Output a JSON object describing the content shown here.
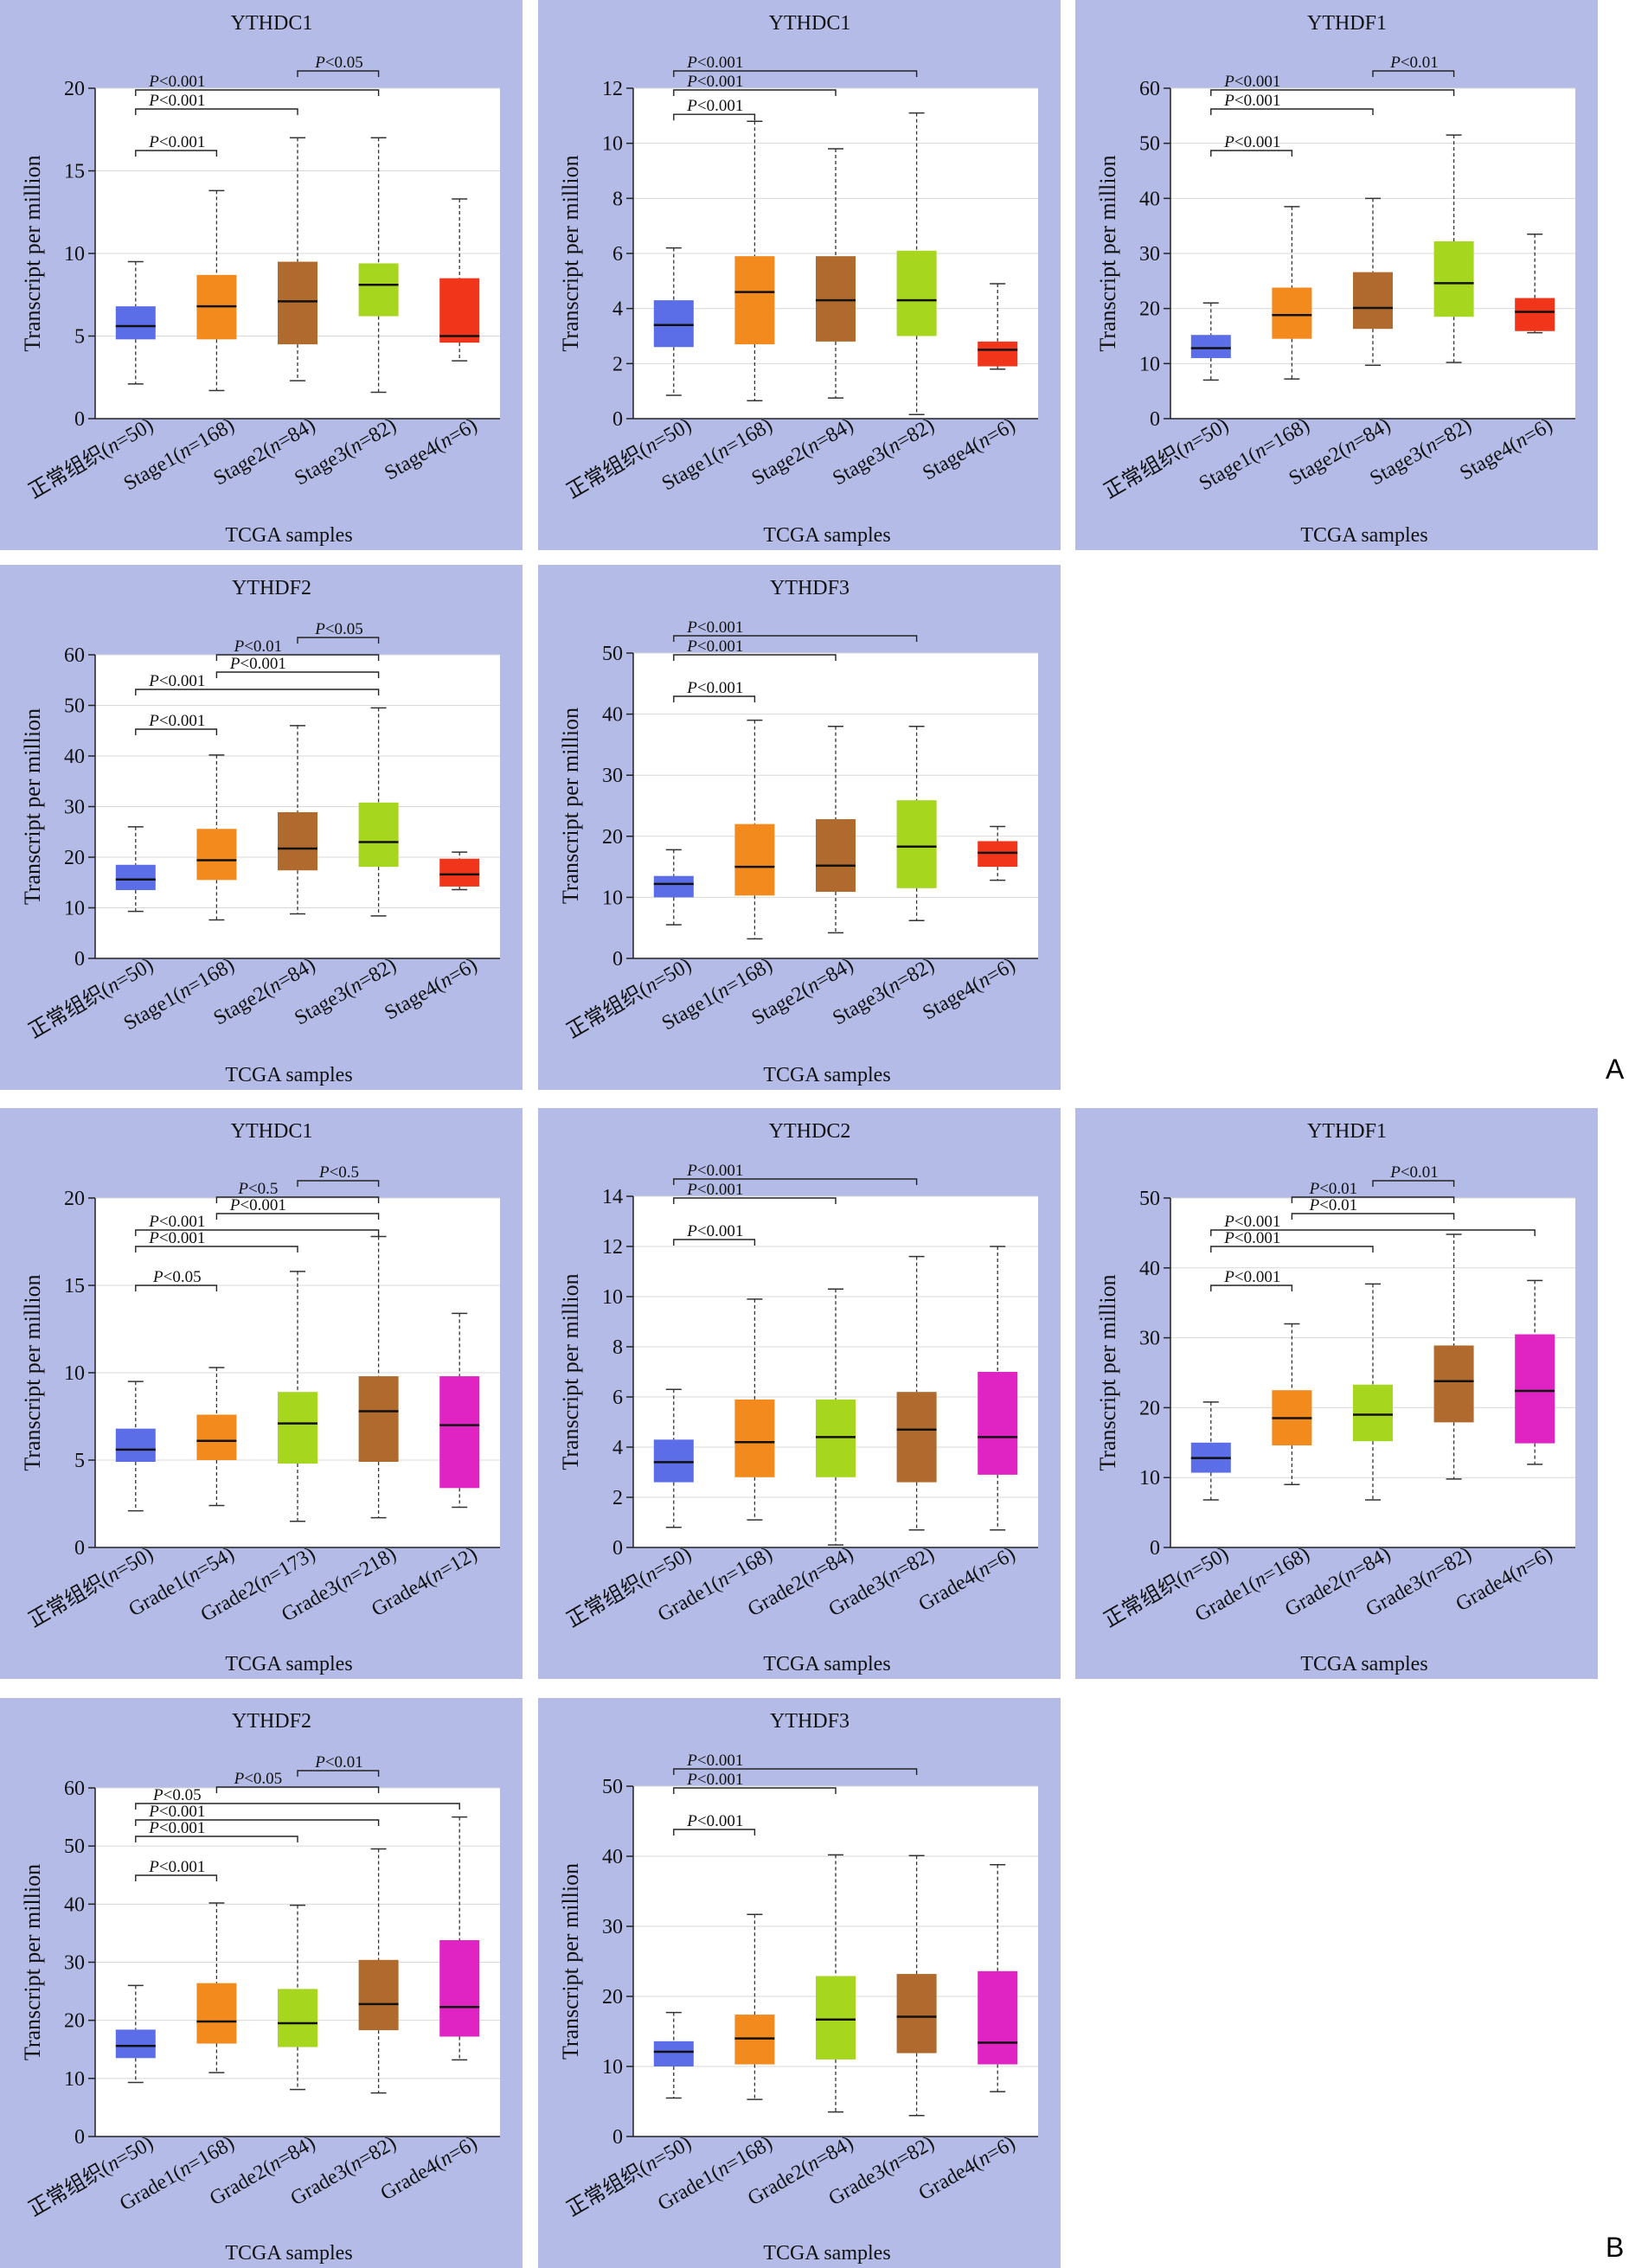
{
  "section_labels": [
    "A",
    "B"
  ],
  "chart_data": [
    {
      "type": "boxplot",
      "title": "YTHDC1",
      "ylabel": "Transcript per million",
      "xlabel": "TCGA samples",
      "ylim": [
        0,
        20
      ],
      "yticks": [
        0,
        5,
        10,
        15,
        20
      ],
      "grid": true,
      "categories": [
        "正常组织(n=50)",
        "Stage1(n=168)",
        "Stage2(n=84)",
        "Stage3(n=82)",
        "Stage4(n=6)"
      ],
      "colors": [
        "#5b6ee8",
        "#f28a1e",
        "#b06a2e",
        "#a6d61e",
        "#f0351a"
      ],
      "boxes": [
        {
          "min": 2.1,
          "q1": 4.8,
          "median": 5.6,
          "q3": 6.8,
          "max": 9.5
        },
        {
          "min": 1.7,
          "q1": 4.8,
          "median": 6.8,
          "q3": 8.7,
          "max": 13.8
        },
        {
          "min": 2.3,
          "q1": 4.5,
          "median": 7.1,
          "q3": 9.5,
          "max": 17.0
        },
        {
          "min": 1.6,
          "q1": 6.2,
          "median": 8.1,
          "q3": 9.4,
          "max": 17.0
        },
        {
          "min": 3.5,
          "q1": 4.6,
          "median": 5.0,
          "q3": 8.5,
          "max": 13.3
        }
      ],
      "comparisons": [
        {
          "from": 2,
          "to": 3,
          "label": "P<0.05"
        },
        {
          "from": 0,
          "to": 3,
          "label": "P<0.001"
        },
        {
          "from": 0,
          "to": 2,
          "label": "P<0.001"
        },
        {
          "from": 0,
          "to": 1,
          "label": "P<0.001"
        }
      ]
    },
    {
      "type": "boxplot",
      "title": "YTHDC1",
      "ylabel": "Transcript per million",
      "xlabel": "TCGA samples",
      "ylim": [
        0,
        12
      ],
      "yticks": [
        0,
        2,
        4,
        6,
        8,
        10,
        12
      ],
      "grid": true,
      "categories": [
        "正常组织(n=50)",
        "Stage1(n=168)",
        "Stage2(n=84)",
        "Stage3(n=82)",
        "Stage4(n=6)"
      ],
      "colors": [
        "#5b6ee8",
        "#f28a1e",
        "#b06a2e",
        "#a6d61e",
        "#f0351a"
      ],
      "boxes": [
        {
          "min": 0.85,
          "q1": 2.6,
          "median": 3.4,
          "q3": 4.3,
          "max": 6.2
        },
        {
          "min": 0.65,
          "q1": 2.7,
          "median": 4.6,
          "q3": 5.9,
          "max": 10.8
        },
        {
          "min": 0.75,
          "q1": 2.8,
          "median": 4.3,
          "q3": 5.9,
          "max": 9.8
        },
        {
          "min": 0.15,
          "q1": 3.0,
          "median": 4.3,
          "q3": 6.1,
          "max": 11.1
        },
        {
          "min": 1.8,
          "q1": 1.9,
          "median": 2.5,
          "q3": 2.8,
          "max": 4.9
        }
      ],
      "comparisons": [
        {
          "from": 0,
          "to": 3,
          "label": "P<0.001"
        },
        {
          "from": 0,
          "to": 2,
          "label": "P<0.001"
        },
        {
          "from": 0,
          "to": 1,
          "label": "P<0.001"
        }
      ]
    },
    {
      "type": "boxplot",
      "title": "YTHDF1",
      "ylabel": "Transcript per million",
      "xlabel": "TCGA samples",
      "ylim": [
        0,
        60
      ],
      "yticks": [
        0,
        10,
        20,
        30,
        40,
        50,
        60
      ],
      "grid": true,
      "categories": [
        "正常组织(n=50)",
        "Stage1(n=168)",
        "Stage2(n=84)",
        "Stage3(n=82)",
        "Stage4(n=6)"
      ],
      "colors": [
        "#5b6ee8",
        "#f28a1e",
        "#b06a2e",
        "#a6d61e",
        "#f0351a"
      ],
      "boxes": [
        {
          "min": 7.0,
          "q1": 11.0,
          "median": 12.8,
          "q3": 15.2,
          "max": 21.0
        },
        {
          "min": 7.2,
          "q1": 14.5,
          "median": 18.8,
          "q3": 23.8,
          "max": 38.5
        },
        {
          "min": 9.7,
          "q1": 16.3,
          "median": 20.1,
          "q3": 26.6,
          "max": 40.0
        },
        {
          "min": 10.2,
          "q1": 18.5,
          "median": 24.6,
          "q3": 32.2,
          "max": 51.5
        },
        {
          "min": 15.6,
          "q1": 15.9,
          "median": 19.4,
          "q3": 21.9,
          "max": 33.5
        }
      ],
      "comparisons": [
        {
          "from": 2,
          "to": 3,
          "label": "P<0.01"
        },
        {
          "from": 0,
          "to": 3,
          "label": "P<0.001"
        },
        {
          "from": 0,
          "to": 2,
          "label": "P<0.001"
        },
        {
          "from": 0,
          "to": 1,
          "label": "P<0.001"
        }
      ]
    },
    {
      "type": "boxplot",
      "title": "YTHDF2",
      "ylabel": "Transcript per million",
      "xlabel": "TCGA samples",
      "ylim": [
        0,
        60
      ],
      "yticks": [
        0,
        10,
        20,
        30,
        40,
        50,
        60
      ],
      "grid": true,
      "categories": [
        "正常组织(n=50)",
        "Stage1(n=168)",
        "Stage2(n=84)",
        "Stage3(n=82)",
        "Stage4(n=6)"
      ],
      "colors": [
        "#5b6ee8",
        "#f28a1e",
        "#b06a2e",
        "#a6d61e",
        "#f0351a"
      ],
      "boxes": [
        {
          "min": 9.3,
          "q1": 13.5,
          "median": 15.6,
          "q3": 18.5,
          "max": 26.0
        },
        {
          "min": 7.6,
          "q1": 15.5,
          "median": 19.4,
          "q3": 25.6,
          "max": 40.2
        },
        {
          "min": 8.8,
          "q1": 17.4,
          "median": 21.7,
          "q3": 28.9,
          "max": 46.0
        },
        {
          "min": 8.4,
          "q1": 18.1,
          "median": 23.0,
          "q3": 30.8,
          "max": 49.5
        },
        {
          "min": 13.6,
          "q1": 14.2,
          "median": 16.6,
          "q3": 19.7,
          "max": 21.0
        }
      ],
      "comparisons": [
        {
          "from": 2,
          "to": 3,
          "label": "P<0.05"
        },
        {
          "from": 1,
          "to": 3,
          "label": "P<0.01"
        },
        {
          "from": 1,
          "to": 3,
          "label": "P<0.001"
        },
        {
          "from": 0,
          "to": 3,
          "label": "P<0.001"
        },
        {
          "from": 0,
          "to": 1,
          "label": "P<0.001"
        }
      ]
    },
    {
      "type": "boxplot",
      "title": "YTHDF3",
      "ylabel": "Transcript per million",
      "xlabel": "TCGA samples",
      "ylim": [
        0,
        50
      ],
      "yticks": [
        0,
        10,
        20,
        30,
        40,
        50
      ],
      "grid": true,
      "categories": [
        "正常组织(n=50)",
        "Stage1(n=168)",
        "Stage2(n=84)",
        "Stage3(n=82)",
        "Stage4(n=6)"
      ],
      "colors": [
        "#5b6ee8",
        "#f28a1e",
        "#b06a2e",
        "#a6d61e",
        "#f0351a"
      ],
      "boxes": [
        {
          "min": 5.5,
          "q1": 10.0,
          "median": 12.2,
          "q3": 13.5,
          "max": 17.8
        },
        {
          "min": 3.2,
          "q1": 10.3,
          "median": 15.0,
          "q3": 22.0,
          "max": 39.0
        },
        {
          "min": 4.2,
          "q1": 10.9,
          "median": 15.2,
          "q3": 22.8,
          "max": 38.0
        },
        {
          "min": 6.2,
          "q1": 11.5,
          "median": 18.3,
          "q3": 25.9,
          "max": 38.0
        },
        {
          "min": 12.8,
          "q1": 15.0,
          "median": 17.3,
          "q3": 19.2,
          "max": 21.6
        }
      ],
      "comparisons": [
        {
          "from": 0,
          "to": 3,
          "label": "P<0.001"
        },
        {
          "from": 0,
          "to": 2,
          "label": "P<0.001"
        },
        {
          "from": 0,
          "to": 1,
          "label": "P<0.001"
        }
      ]
    },
    {
      "type": "boxplot",
      "title": "YTHDC1",
      "ylabel": "Transcript per million",
      "xlabel": "TCGA samples",
      "ylim": [
        0,
        20
      ],
      "yticks": [
        0,
        5,
        10,
        15,
        20
      ],
      "grid": true,
      "categories": [
        "正常组织(n=50)",
        "Grade1(n=54)",
        "Grade2(n=173)",
        "Grade3(n=218)",
        "Grade4(n=12)"
      ],
      "colors": [
        "#5b6ee8",
        "#f28a1e",
        "#a6d61e",
        "#b06a2e",
        "#e024c4"
      ],
      "boxes": [
        {
          "min": 2.1,
          "q1": 4.9,
          "median": 5.6,
          "q3": 6.8,
          "max": 9.5
        },
        {
          "min": 2.4,
          "q1": 5.0,
          "median": 6.1,
          "q3": 7.6,
          "max": 10.3
        },
        {
          "min": 1.5,
          "q1": 4.8,
          "median": 7.1,
          "q3": 8.9,
          "max": 15.8
        },
        {
          "min": 1.7,
          "q1": 4.9,
          "median": 7.8,
          "q3": 9.8,
          "max": 17.8
        },
        {
          "min": 2.3,
          "q1": 3.4,
          "median": 7.0,
          "q3": 9.8,
          "max": 13.4
        }
      ],
      "comparisons": [
        {
          "from": 2,
          "to": 3,
          "label": "P<0.5"
        },
        {
          "from": 1,
          "to": 3,
          "label": "P<0.5"
        },
        {
          "from": 1,
          "to": 3,
          "label": "P<0.001"
        },
        {
          "from": 0,
          "to": 3,
          "label": "P<0.001"
        },
        {
          "from": 0,
          "to": 2,
          "label": "P<0.001"
        },
        {
          "from": 0,
          "to": 1,
          "label": "P<0.05"
        }
      ]
    },
    {
      "type": "boxplot",
      "title": "YTHDC2",
      "ylabel": "Transcript per million",
      "xlabel": "TCGA samples",
      "ylim": [
        0,
        14
      ],
      "yticks": [
        0,
        2,
        4,
        6,
        8,
        10,
        12,
        14
      ],
      "grid": true,
      "categories": [
        "正常组织(n=50)",
        "Grade1(n=168)",
        "Grade2(n=84)",
        "Grade3(n=82)",
        "Grade4(n=6)"
      ],
      "colors": [
        "#5b6ee8",
        "#f28a1e",
        "#a6d61e",
        "#b06a2e",
        "#e024c4"
      ],
      "boxes": [
        {
          "min": 0.8,
          "q1": 2.6,
          "median": 3.4,
          "q3": 4.3,
          "max": 6.3
        },
        {
          "min": 1.1,
          "q1": 2.8,
          "median": 4.2,
          "q3": 5.9,
          "max": 9.9
        },
        {
          "min": 0.1,
          "q1": 2.8,
          "median": 4.4,
          "q3": 5.9,
          "max": 10.3
        },
        {
          "min": 0.7,
          "q1": 2.6,
          "median": 4.7,
          "q3": 6.2,
          "max": 11.6
        },
        {
          "min": 0.7,
          "q1": 2.9,
          "median": 4.4,
          "q3": 7.0,
          "max": 12.0
        }
      ],
      "comparisons": [
        {
          "from": 0,
          "to": 3,
          "label": "P<0.001"
        },
        {
          "from": 0,
          "to": 2,
          "label": "P<0.001"
        },
        {
          "from": 0,
          "to": 1,
          "label": "P<0.001"
        }
      ]
    },
    {
      "type": "boxplot",
      "title": "YTHDF1",
      "ylabel": "Transcript per million",
      "xlabel": "TCGA samples",
      "ylim": [
        0,
        50
      ],
      "yticks": [
        0,
        10,
        20,
        30,
        40,
        50
      ],
      "grid": true,
      "categories": [
        "正常组织(n=50)",
        "Grade1(n=168)",
        "Grade2(n=84)",
        "Grade3(n=82)",
        "Grade4(n=6)"
      ],
      "colors": [
        "#5b6ee8",
        "#f28a1e",
        "#a6d61e",
        "#b06a2e",
        "#e024c4"
      ],
      "boxes": [
        {
          "min": 6.8,
          "q1": 10.7,
          "median": 12.8,
          "q3": 15.0,
          "max": 20.8
        },
        {
          "min": 9.0,
          "q1": 14.6,
          "median": 18.5,
          "q3": 22.5,
          "max": 32.0
        },
        {
          "min": 6.8,
          "q1": 15.2,
          "median": 19.0,
          "q3": 23.3,
          "max": 37.7
        },
        {
          "min": 9.8,
          "q1": 17.9,
          "median": 23.8,
          "q3": 28.9,
          "max": 44.8
        },
        {
          "min": 11.9,
          "q1": 14.9,
          "median": 22.4,
          "q3": 30.5,
          "max": 38.2
        }
      ],
      "comparisons": [
        {
          "from": 2,
          "to": 3,
          "label": "P<0.01"
        },
        {
          "from": 1,
          "to": 3,
          "label": "P<0.01"
        },
        {
          "from": 1,
          "to": 3,
          "label": "P<0.01"
        },
        {
          "from": 0,
          "to": 4,
          "label": "P<0.001"
        },
        {
          "from": 0,
          "to": 2,
          "label": "P<0.001"
        },
        {
          "from": 0,
          "to": 1,
          "label": "P<0.001"
        }
      ]
    },
    {
      "type": "boxplot",
      "title": "YTHDF2",
      "ylabel": "Transcript per million",
      "xlabel": "TCGA samples",
      "ylim": [
        0,
        60
      ],
      "yticks": [
        0,
        10,
        20,
        30,
        40,
        50,
        60
      ],
      "grid": true,
      "categories": [
        "正常组织(n=50)",
        "Grade1(n=168)",
        "Grade2(n=84)",
        "Grade3(n=82)",
        "Grade4(n=6)"
      ],
      "colors": [
        "#5b6ee8",
        "#f28a1e",
        "#a6d61e",
        "#b06a2e",
        "#e024c4"
      ],
      "boxes": [
        {
          "min": 9.3,
          "q1": 13.5,
          "median": 15.6,
          "q3": 18.4,
          "max": 26.0
        },
        {
          "min": 11.0,
          "q1": 16.0,
          "median": 19.8,
          "q3": 26.4,
          "max": 40.2
        },
        {
          "min": 8.1,
          "q1": 15.4,
          "median": 19.5,
          "q3": 25.4,
          "max": 39.8
        },
        {
          "min": 7.5,
          "q1": 18.3,
          "median": 22.8,
          "q3": 30.4,
          "max": 49.5
        },
        {
          "min": 13.2,
          "q1": 17.2,
          "median": 22.3,
          "q3": 33.8,
          "max": 55.0
        }
      ],
      "comparisons": [
        {
          "from": 2,
          "to": 3,
          "label": "P<0.01"
        },
        {
          "from": 1,
          "to": 3,
          "label": "P<0.05"
        },
        {
          "from": 0,
          "to": 4,
          "label": "P<0.05"
        },
        {
          "from": 0,
          "to": 3,
          "label": "P<0.001"
        },
        {
          "from": 0,
          "to": 2,
          "label": "P<0.001"
        },
        {
          "from": 0,
          "to": 1,
          "label": "P<0.001"
        }
      ]
    },
    {
      "type": "boxplot",
      "title": "YTHDF3",
      "ylabel": "Transcript per million",
      "xlabel": "TCGA samples",
      "ylim": [
        0,
        50
      ],
      "yticks": [
        0,
        10,
        20,
        30,
        40,
        50
      ],
      "grid": true,
      "categories": [
        "正常组织(n=50)",
        "Grade1(n=168)",
        "Grade2(n=84)",
        "Grade3(n=82)",
        "Grade4(n=6)"
      ],
      "colors": [
        "#5b6ee8",
        "#f28a1e",
        "#a6d61e",
        "#b06a2e",
        "#e024c4"
      ],
      "boxes": [
        {
          "min": 5.5,
          "q1": 10.0,
          "median": 12.1,
          "q3": 13.6,
          "max": 17.7
        },
        {
          "min": 5.3,
          "q1": 10.3,
          "median": 14.0,
          "q3": 17.4,
          "max": 31.7
        },
        {
          "min": 3.5,
          "q1": 11.0,
          "median": 16.7,
          "q3": 22.9,
          "max": 40.2
        },
        {
          "min": 3.0,
          "q1": 11.9,
          "median": 17.1,
          "q3": 23.2,
          "max": 40.1
        },
        {
          "min": 6.4,
          "q1": 10.3,
          "median": 13.4,
          "q3": 23.6,
          "max": 38.8
        }
      ],
      "comparisons": [
        {
          "from": 0,
          "to": 3,
          "label": "P<0.001"
        },
        {
          "from": 0,
          "to": 2,
          "label": "P<0.001"
        },
        {
          "from": 0,
          "to": 1,
          "label": "P<0.001"
        }
      ]
    }
  ]
}
